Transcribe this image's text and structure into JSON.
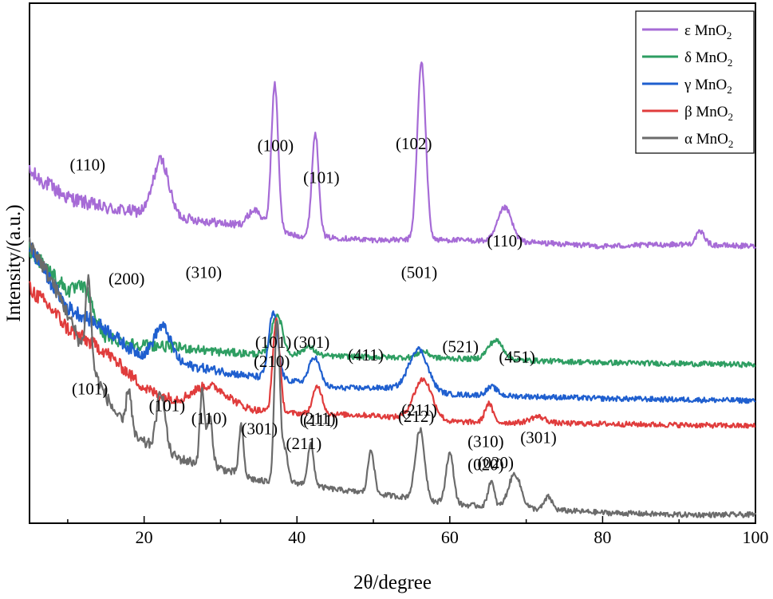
{
  "chart_data": {
    "type": "line",
    "xlabel": "2θ/degree",
    "ylabel": "Intensity/(a.u.)",
    "xlim": [
      5,
      100
    ],
    "x_ticks": [
      20,
      40,
      60,
      80,
      100
    ],
    "x_tick_labels": [
      "20",
      "40",
      "60",
      "80",
      "100"
    ],
    "y_ticks_shown": false,
    "grid": false,
    "legend_position": "top-right",
    "series": [
      {
        "name": "ε MnO",
        "legend_base": "ε MnO",
        "legend_sub": "2",
        "color": "#a66bd6",
        "baseline": 0.92,
        "background": [
          [
            5,
            7.6
          ],
          [
            10,
            6.4
          ],
          [
            15,
            5.9
          ],
          [
            20,
            5.7
          ],
          [
            30,
            5.2
          ],
          [
            35,
            5.0
          ],
          [
            40,
            4.6
          ],
          [
            50,
            4.4
          ],
          [
            60,
            4.4
          ],
          [
            70,
            4.3
          ],
          [
            80,
            4.1
          ],
          [
            90,
            4.2
          ],
          [
            100,
            4.1
          ]
        ],
        "peaks": [
          [
            22.2,
            2.6,
            1.0
          ],
          [
            34.5,
            0.8,
            0.9
          ],
          [
            37.1,
            6.9,
            0.45
          ],
          [
            42.4,
            4.9,
            0.45
          ],
          [
            56.3,
            8.4,
            0.55
          ],
          [
            67.2,
            1.6,
            0.9
          ],
          [
            92.8,
            0.6,
            0.6
          ]
        ],
        "labels": [
          {
            "text": "(100)",
            "x": 37.2,
            "y": 17.6
          },
          {
            "text": "(101)",
            "x": 43.2,
            "y": 16.1
          },
          {
            "text": "(102)",
            "x": 55.3,
            "y": 17.7
          },
          {
            "text": "(110)",
            "x": 67.2,
            "y": 13.1
          }
        ]
      },
      {
        "name": "δ MnO",
        "legend_base": "δ MnO",
        "legend_sub": "2",
        "color": "#2e9e62",
        "baseline": 0.9,
        "background": [
          [
            5,
            5.8
          ],
          [
            8,
            4.6
          ],
          [
            10,
            3.8
          ],
          [
            11,
            3.6
          ],
          [
            13,
            2.6
          ],
          [
            15,
            1.6
          ],
          [
            18,
            1.3
          ],
          [
            25,
            1.1
          ],
          [
            30,
            0.9
          ],
          [
            35,
            0.8
          ],
          [
            45,
            0.7
          ],
          [
            60,
            0.6
          ],
          [
            80,
            0.4
          ],
          [
            100,
            0.3
          ]
        ],
        "peaks": [
          [
            12.3,
            0.9,
            0.9
          ],
          [
            37.4,
            1.9,
            0.7
          ],
          [
            41.5,
            0.4,
            0.8
          ],
          [
            56.5,
            0.3,
            0.8
          ],
          [
            66.0,
            0.9,
            1.0
          ]
        ],
        "labels": [
          {
            "text": "(101)",
            "x": 12.9,
            "y": 6.1
          },
          {
            "text": "(301)",
            "x": 35.1,
            "y": 4.2
          },
          {
            "text": "(211)",
            "x": 40.9,
            "y": 3.5
          },
          {
            "text": "(020)",
            "x": 66.0,
            "y": 2.6
          }
        ]
      },
      {
        "name": "γ MnO",
        "legend_base": "γ MnO",
        "legend_sub": "2",
        "color": "#1f5fcf",
        "baseline": 0.9,
        "background": [
          [
            5,
            7.8
          ],
          [
            8,
            6.0
          ],
          [
            10,
            4.9
          ],
          [
            15,
            3.9
          ],
          [
            18,
            3.0
          ],
          [
            20,
            2.6
          ],
          [
            25,
            2.2
          ],
          [
            30,
            1.9
          ],
          [
            33,
            1.7
          ],
          [
            40,
            1.4
          ],
          [
            45,
            1.1
          ],
          [
            50,
            1.1
          ],
          [
            55,
            1.1
          ],
          [
            60,
            0.8
          ],
          [
            70,
            0.7
          ],
          [
            80,
            0.6
          ],
          [
            100,
            0.5
          ]
        ],
        "peaks": [
          [
            22.4,
            1.6,
            1.1
          ],
          [
            36.9,
            3.1,
            0.6
          ],
          [
            42.3,
            1.3,
            0.7
          ],
          [
            55.9,
            1.9,
            1.2
          ],
          [
            65.5,
            0.4,
            0.7
          ]
        ],
        "labels": [
          {
            "text": "(101)",
            "x": 23.0,
            "y": 5.3
          },
          {
            "text": "(210)",
            "x": 36.7,
            "y": 7.4
          },
          {
            "text": "(211)",
            "x": 42.7,
            "y": 4.7
          },
          {
            "text": "(212)",
            "x": 55.6,
            "y": 4.8
          },
          {
            "text": "(020)",
            "x": 64.7,
            "y": 2.5
          }
        ]
      },
      {
        "name": "β MnO",
        "legend_base": "β MnO",
        "legend_sub": "2",
        "color": "#e03c3c",
        "baseline": 0.85,
        "background": [
          [
            5,
            6.9
          ],
          [
            8,
            5.9
          ],
          [
            10,
            5.0
          ],
          [
            15,
            3.9
          ],
          [
            20,
            2.2
          ],
          [
            25,
            1.3
          ],
          [
            28,
            1.2
          ],
          [
            35,
            1.1
          ],
          [
            40,
            1.0
          ],
          [
            50,
            0.9
          ],
          [
            60,
            0.6
          ],
          [
            80,
            0.5
          ],
          [
            100,
            0.4
          ]
        ],
        "peaks": [
          [
            28.5,
            1.1,
            2.5
          ],
          [
            37.3,
            4.4,
            0.45
          ],
          [
            42.7,
            1.3,
            0.6
          ],
          [
            56.5,
            1.9,
            1.2
          ],
          [
            65.1,
            0.9,
            0.5
          ],
          [
            71.5,
            0.3,
            1.0
          ]
        ],
        "labels": [
          {
            "text": "(110)",
            "x": 28.5,
            "y": 4.7
          },
          {
            "text": "(101)",
            "x": 36.9,
            "y": 8.3
          },
          {
            "text": "(111)",
            "x": 43.1,
            "y": 4.6
          },
          {
            "text": "(211)",
            "x": 56.0,
            "y": 5.1
          },
          {
            "text": "(310)",
            "x": 64.7,
            "y": 3.6
          },
          {
            "text": "(301)",
            "x": 71.6,
            "y": 3.8
          }
        ]
      },
      {
        "name": "α MnO",
        "legend_base": "α MnO",
        "legend_sub": "2",
        "color": "#6b6b6b",
        "baseline": 0.8,
        "background": [
          [
            5,
            13.3
          ],
          [
            8,
            11.4
          ],
          [
            10,
            9.9
          ],
          [
            12,
            8.2
          ],
          [
            15,
            6.0
          ],
          [
            18,
            4.2
          ],
          [
            20,
            3.8
          ],
          [
            25,
            3.0
          ],
          [
            30,
            2.6
          ],
          [
            35,
            2.0
          ],
          [
            40,
            1.9
          ],
          [
            45,
            1.6
          ],
          [
            50,
            1.4
          ],
          [
            55,
            1.2
          ],
          [
            60,
            0.9
          ],
          [
            70,
            0.7
          ],
          [
            80,
            0.5
          ],
          [
            90,
            0.4
          ],
          [
            100,
            0.4
          ]
        ],
        "peaks": [
          [
            12.7,
            3.9,
            0.35
          ],
          [
            18.0,
            2.2,
            0.35
          ],
          [
            22.2,
            2.8,
            0.55
          ],
          [
            27.6,
            3.5,
            0.3
          ],
          [
            28.6,
            2.3,
            0.35
          ],
          [
            32.7,
            2.3,
            0.3
          ],
          [
            37.4,
            7.7,
            0.35
          ],
          [
            38.4,
            1.5,
            0.4
          ],
          [
            41.8,
            1.9,
            0.4
          ],
          [
            49.7,
            2.1,
            0.4
          ],
          [
            56.1,
            3.3,
            0.6
          ],
          [
            60.0,
            2.4,
            0.5
          ],
          [
            65.4,
            1.2,
            0.4
          ],
          [
            68.5,
            1.6,
            0.8
          ],
          [
            72.9,
            0.6,
            0.5
          ]
        ],
        "labels": [
          {
            "text": "(110)",
            "x": 12.6,
            "y": 16.7
          },
          {
            "text": "(200)",
            "x": 17.7,
            "y": 11.3
          },
          {
            "text": "(310)",
            "x": 27.8,
            "y": 11.6
          },
          {
            "text": "(301)",
            "x": 41.9,
            "y": 8.3
          },
          {
            "text": "(411)",
            "x": 49.0,
            "y": 7.7
          },
          {
            "text": "(501)",
            "x": 56.0,
            "y": 11.6
          },
          {
            "text": "(521)",
            "x": 61.4,
            "y": 8.1
          },
          {
            "text": "(451)",
            "x": 68.8,
            "y": 7.6
          }
        ]
      }
    ]
  }
}
